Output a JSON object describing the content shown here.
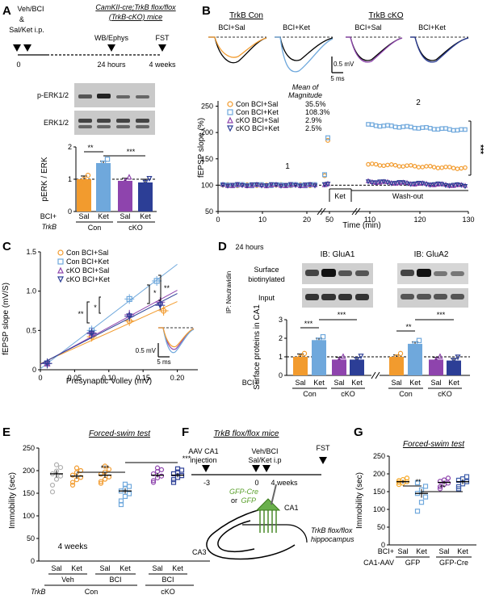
{
  "colors": {
    "con_sal": "#f29b2e",
    "con_ket": "#6fa8dc",
    "cko_sal": "#8e44ad",
    "cko_ket": "#2c3e96",
    "gfp": "#f5a623",
    "gfpcre": "#3b5ba9"
  },
  "panelA": {
    "label": "A",
    "treat_line1": "Veh/BCI",
    "treat_line2": "&",
    "treat_line3": "Sal/Ket i.p.",
    "mouse_line1": "CamKII-cre;TrkB flox/flox",
    "mouse_line2": "(TrkB-cKO) mice",
    "time0": "0",
    "time24": "24 hours",
    "time4w": "4 weeks",
    "event_wb": "WB/Ephys",
    "event_fst": "FST",
    "blot1": "p-ERK1/2",
    "blot2": "ERK1/2",
    "row_bci": "BCI+",
    "row_trkb": "TrkB",
    "cond_sal": "Sal",
    "cond_ket": "Ket",
    "group_con": "Con",
    "group_cko": "cKO",
    "sig1": "**",
    "sig2": "***",
    "chart_data": {
      "type": "bar",
      "categories": [
        "Con Sal",
        "Con Ket",
        "cKO Sal",
        "cKO Ket"
      ],
      "values": [
        1.0,
        1.5,
        0.95,
        0.9
      ],
      "errors": [
        0.1,
        0.06,
        0.08,
        0.1
      ],
      "ylabel": "pERK / ERK",
      "yticks": [
        "0",
        "1",
        "2"
      ],
      "ylim": [
        0,
        2
      ]
    }
  },
  "panelB": {
    "label": "B",
    "title_con": "TrkB Con",
    "title_cko": "TrkB cKO",
    "tr1": "BCI+Sal",
    "tr2": "BCI+Ket",
    "tr3": "BCI+Sal",
    "tr4": "BCI+Ket",
    "scale_v": "0.5 mV",
    "scale_t": "5 ms",
    "mean_title1": "Mean of",
    "mean_title2": "Magnitude",
    "legend": [
      {
        "label": "Con BCI+Sal",
        "value": "35.5%"
      },
      {
        "label": "Con BCI+Ket",
        "value": "108.3%"
      },
      {
        "label": "cKO BCI+Sal",
        "value": "2.9%"
      },
      {
        "label": "cKO BCI+Ket",
        "value": "2.5%"
      }
    ],
    "region1": "1",
    "region2": "2",
    "ket_label": "Ket",
    "washout_label": "Wash-out",
    "sig": "***",
    "chart_data": {
      "type": "scatter",
      "xlabel": "Time (min)",
      "ylabel": "fEPSP slope (%)",
      "xticks": [
        "0",
        "10",
        "20",
        "50",
        "110",
        "120",
        "130"
      ],
      "yticks": [
        "50",
        "100",
        "150",
        "200",
        "250"
      ],
      "ylim": [
        50,
        260
      ],
      "series": [
        {
          "name": "Con BCI+Sal",
          "baseline": 100,
          "washout": 135.5
        },
        {
          "name": "Con BCI+Ket",
          "baseline": 100,
          "washout": 208.3
        },
        {
          "name": "cKO BCI+Sal",
          "baseline": 100,
          "washout": 102.9
        },
        {
          "name": "cKO BCI+Ket",
          "baseline": 100,
          "washout": 102.5
        }
      ]
    }
  },
  "panelC": {
    "label": "C",
    "legend": [
      "Con BCI+Sal",
      "Con BCI+Ket",
      "cKO BCI+Sal",
      "cKO BCI+Ket"
    ],
    "sig_a": "**",
    "sig_b": "*",
    "sig_c": "*",
    "sig_d": "**",
    "scale_v": "0.5 mV",
    "scale_t": "5 ms",
    "chart_data": {
      "type": "scatter",
      "xlabel": "Presynaptic Volley (mV)",
      "ylabel": "fEPSP slope (mV/S)",
      "xticks": [
        "0",
        "0.05",
        "0.10",
        "0.15",
        "0.20"
      ],
      "yticks": [
        "0",
        "0.5",
        "1.0",
        "1.5"
      ],
      "xlim": [
        0,
        0.23
      ],
      "ylim": [
        0,
        1.5
      ],
      "series": [
        {
          "name": "Con BCI+Sal",
          "x": [
            0.01,
            0.075,
            0.13,
            0.18
          ],
          "y": [
            0.08,
            0.42,
            0.62,
            0.75
          ]
        },
        {
          "name": "Con BCI+Ket",
          "x": [
            0.01,
            0.075,
            0.13,
            0.17
          ],
          "y": [
            0.08,
            0.5,
            0.9,
            1.13
          ]
        },
        {
          "name": "cKO BCI+Sal",
          "x": [
            0.01,
            0.075,
            0.13,
            0.175
          ],
          "y": [
            0.08,
            0.47,
            0.7,
            0.86
          ]
        },
        {
          "name": "cKO BCI+Ket",
          "x": [
            0.01,
            0.075,
            0.13,
            0.175
          ],
          "y": [
            0.08,
            0.46,
            0.68,
            0.82
          ]
        }
      ]
    }
  },
  "panelD": {
    "label": "D",
    "time": "24 hours",
    "ib1": "IB: GluA1",
    "ib2": "IB: GluA2",
    "ip": "IP: Neutravidin",
    "row1a": "Surface",
    "row1b": "biotinylated",
    "row2": "Input",
    "bci": "BCI+",
    "sal": "Sal",
    "ket": "Ket",
    "con": "Con",
    "cko": "cKO",
    "sig_a": "***",
    "sig_b": "***",
    "sig_c": "**",
    "sig_d": "***",
    "chart_data": {
      "type": "bar",
      "ylabel": "Surface proteins in CA1",
      "yticks": [
        "0",
        "1",
        "2",
        "3"
      ],
      "ylim": [
        0,
        3
      ],
      "categories": [
        "GluA1 Con Sal",
        "GluA1 Con Ket",
        "GluA1 cKO Sal",
        "GluA1 cKO Ket",
        "GluA2 Con Sal",
        "GluA2 Con Ket",
        "GluA2 cKO Sal",
        "GluA2 cKO Ket"
      ],
      "values": [
        1.0,
        1.9,
        0.85,
        0.85,
        1.0,
        1.7,
        0.85,
        0.8
      ],
      "errors": [
        0.15,
        0.1,
        0.12,
        0.12,
        0.1,
        0.1,
        0.12,
        0.12
      ]
    }
  },
  "panelE": {
    "label": "E",
    "title": "Forced-swim test",
    "duration": "4 weeks",
    "sal": "Sal",
    "ket": "Ket",
    "g1": "Veh",
    "g2": "BCI",
    "g3": "BCI",
    "trkb": "TrkB",
    "con": "Con",
    "cko": "cKO",
    "sig1": "***",
    "sig2": "***",
    "chart_data": {
      "type": "scatter",
      "ylabel": "Immobility (sec)",
      "yticks": [
        "0",
        "50",
        "100",
        "150",
        "200",
        "250"
      ],
      "ylim": [
        0,
        250
      ],
      "categories": [
        "Veh Sal",
        "Veh Ket",
        "BCI Sal",
        "BCI Ket",
        "cKO BCI Sal",
        "cKO BCI Ket"
      ],
      "values": [
        193,
        188,
        190,
        155,
        190,
        190
      ],
      "errors": [
        8,
        6,
        6,
        6,
        5,
        5
      ]
    }
  },
  "panelF": {
    "label": "F",
    "title": "TrkB flox/flox mice",
    "ev1a": "AAV CA1",
    "ev1b": "injection",
    "ev2a": "Veh/BCI",
    "ev2b": "Sal/Ket i.p",
    "ev3": "FST",
    "t1": "-3",
    "t2": "0",
    "t3": "4 weeks",
    "virus1": "GFP-Cre",
    "virus_or": "or",
    "virus2": "GFP",
    "ca1": "CA1",
    "ca3": "CA3",
    "hippo1": "TrkB flox/flox",
    "hippo2": "hippocampus"
  },
  "panelG": {
    "label": "G",
    "title": "Forced-swim test",
    "bci": "BCI+",
    "aav": "CA1-AAV",
    "sal": "Sal",
    "ket": "Ket",
    "gfp": "GFP",
    "gfpcre": "GFP-Cre",
    "sig1": "**",
    "sig2": "**",
    "chart_data": {
      "type": "scatter",
      "ylabel": "Immobility (sec)",
      "yticks": [
        "0",
        "50",
        "100",
        "150",
        "200",
        "250"
      ],
      "ylim": [
        0,
        250
      ],
      "categories": [
        "GFP Sal",
        "GFP Ket",
        "GFP-Cre Sal",
        "GFP-Cre Ket"
      ],
      "values": [
        178,
        145,
        176,
        178
      ],
      "errors": [
        5,
        12,
        5,
        7
      ]
    }
  }
}
